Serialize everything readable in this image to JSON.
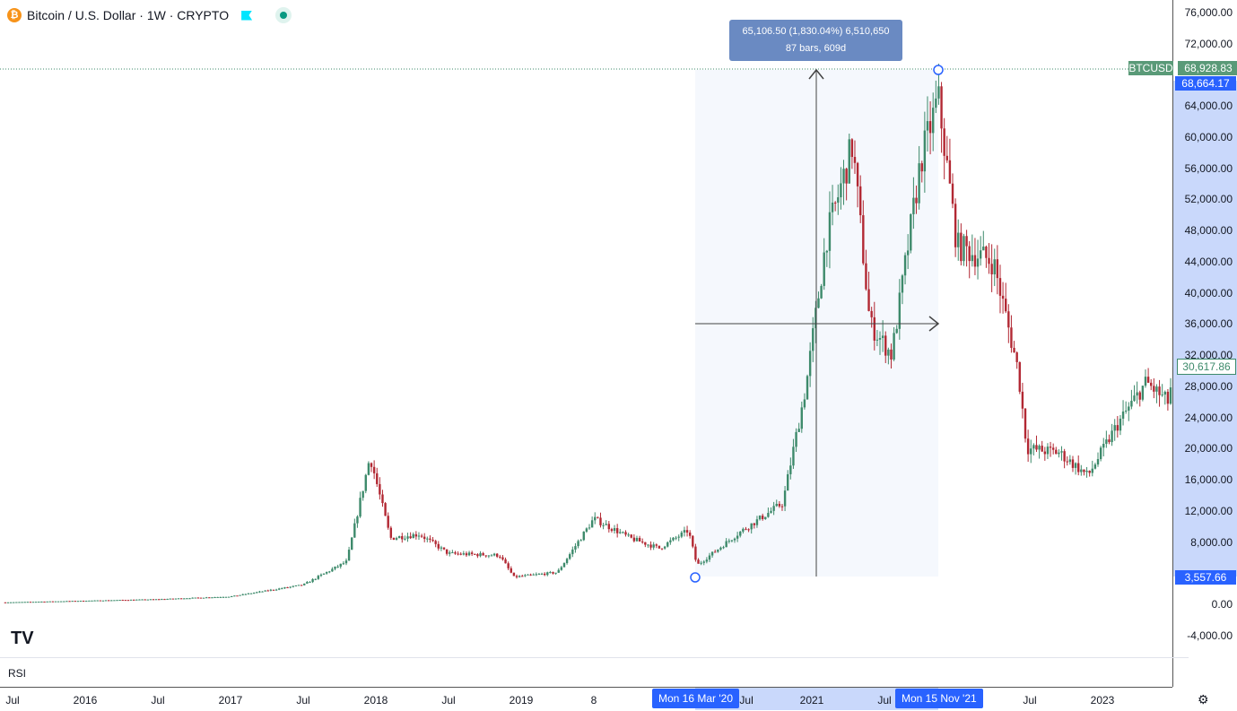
{
  "header": {
    "symbol_icon": "bitcoin-icon",
    "title": "Bitcoin / U.S. Dollar · 1W · CRYPTO",
    "flag_icon": "flag-icon",
    "status_icon": "market-status-dot"
  },
  "price_scale": {
    "ticks": [
      "76,000.00",
      "72,000.00",
      "64,000.00",
      "60,000.00",
      "56,000.00",
      "52,000.00",
      "48,000.00",
      "44,000.00",
      "40,000.00",
      "36,000.00",
      "32,000.00",
      "28,000.00",
      "24,000.00",
      "20,000.00",
      "16,000.00",
      "12,000.00",
      "8,000.00",
      "0.00",
      "-4,000.00"
    ],
    "tick_values": [
      76000,
      72000,
      64000,
      60000,
      56000,
      52000,
      48000,
      44000,
      40000,
      36000,
      32000,
      28000,
      24000,
      20000,
      16000,
      12000,
      8000,
      0,
      -4000
    ],
    "high_label": {
      "symbol": "BTCUSD",
      "value": "68,928.83",
      "num": 68928.83
    },
    "measure_high": {
      "value": "68,664.17",
      "num": 68664.17
    },
    "last_price": {
      "value": "30,617.86",
      "num": 30617.86
    },
    "measure_low": {
      "value": "3,557.66",
      "num": 3557.66
    }
  },
  "time_axis": {
    "ticks": [
      {
        "label": "Jul",
        "t": 2015.5
      },
      {
        "label": "2016",
        "t": 2016
      },
      {
        "label": "Jul",
        "t": 2016.5
      },
      {
        "label": "2017",
        "t": 2017
      },
      {
        "label": "Jul",
        "t": 2017.5
      },
      {
        "label": "2018",
        "t": 2018
      },
      {
        "label": "Jul",
        "t": 2018.5
      },
      {
        "label": "2019",
        "t": 2019
      },
      {
        "label": "8",
        "t": 2019.5
      },
      {
        "label": "Jul",
        "t": 2020.55
      },
      {
        "label": "2021",
        "t": 2021
      },
      {
        "label": "Jul",
        "t": 2021.5
      },
      {
        "label": "Jul",
        "t": 2022.5
      },
      {
        "label": "2023",
        "t": 2023
      }
    ],
    "range_start": "Mon 16 Mar '20",
    "range_end": "Mon 15 Nov '21"
  },
  "measure": {
    "line1": "65,106.50 (1,830.04%) 6,510,650",
    "line2": "87 bars, 609d"
  },
  "indicator": {
    "label": "RSI"
  },
  "logo": "TV",
  "colors": {
    "up": "#089981",
    "down": "#f23645",
    "candle_up": "#3d8a6b",
    "candle_down": "#b22833",
    "measure": "#2962ff"
  },
  "chart_data": {
    "type": "candlestick",
    "title": "Bitcoin / U.S. Dollar · 1W · CRYPTO",
    "ylim": [
      -6000,
      78000
    ],
    "anchors": [
      [
        2015.45,
        250
      ],
      [
        2016.5,
        650
      ],
      [
        2017.0,
        1000
      ],
      [
        2017.5,
        2500
      ],
      [
        2017.8,
        5500
      ],
      [
        2017.96,
        19000
      ],
      [
        2018.1,
        8500
      ],
      [
        2018.3,
        9000
      ],
      [
        2018.5,
        6500
      ],
      [
        2018.85,
        6300
      ],
      [
        2018.95,
        3500
      ],
      [
        2019.25,
        4100
      ],
      [
        2019.5,
        11000
      ],
      [
        2019.75,
        8500
      ],
      [
        2019.95,
        7200
      ],
      [
        2020.15,
        9500
      ],
      [
        2020.21,
        5000
      ],
      [
        2020.5,
        9200
      ],
      [
        2020.8,
        13000
      ],
      [
        2020.96,
        28000
      ],
      [
        2021.1,
        47000
      ],
      [
        2021.28,
        59000
      ],
      [
        2021.4,
        36000
      ],
      [
        2021.55,
        32000
      ],
      [
        2021.75,
        57000
      ],
      [
        2021.87,
        65000
      ],
      [
        2022.0,
        46000
      ],
      [
        2022.25,
        44000
      ],
      [
        2022.42,
        30000
      ],
      [
        2022.48,
        20000
      ],
      [
        2022.7,
        19500
      ],
      [
        2022.9,
        16500
      ],
      [
        2023.1,
        23000
      ],
      [
        2023.3,
        28500
      ],
      [
        2023.45,
        26000
      ],
      [
        2023.5,
        30617
      ]
    ]
  }
}
